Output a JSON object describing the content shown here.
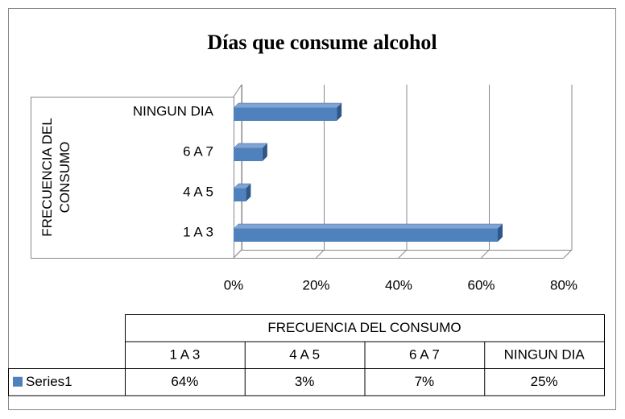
{
  "chart_data": {
    "type": "bar",
    "orientation": "horizontal",
    "title": "Días que consume alcohol",
    "y_label": "FRECUENCIA DEL CONSUMO",
    "categories": [
      "1 A 3",
      "4 A 5",
      "6 A 7",
      "NINGUN DIA"
    ],
    "series": [
      {
        "name": "Series1",
        "color": "#4f81bd",
        "values": [
          64,
          3,
          7,
          25
        ],
        "value_labels": [
          "64%",
          "3%",
          "7%",
          "25%"
        ]
      }
    ],
    "xlim": [
      0,
      80
    ],
    "xticks": [
      {
        "value": 0,
        "label": "0%"
      },
      {
        "value": 20,
        "label": "20%"
      },
      {
        "value": 40,
        "label": "40%"
      },
      {
        "value": 60,
        "label": "60%"
      },
      {
        "value": 80,
        "label": "80%"
      }
    ],
    "grid": true,
    "data_table": true
  }
}
